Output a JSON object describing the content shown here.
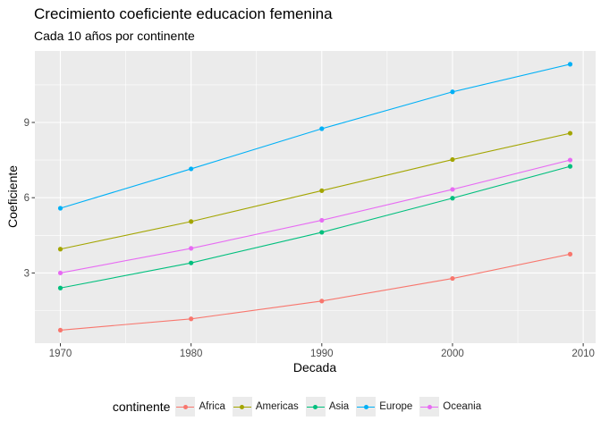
{
  "chart_data": {
    "type": "line",
    "title": "Crecimiento coeficiente educacion femenina",
    "subtitle": "Cada 10 años por continente",
    "xlabel": "Decada",
    "ylabel": "Coeficiente",
    "x": [
      1970,
      1980,
      1990,
      2000,
      2009
    ],
    "xlim": [
      1968.05,
      2010.95
    ],
    "ylim": [
      0.2,
      11.85
    ],
    "xticks": [
      1970,
      1980,
      1990,
      2000,
      2010
    ],
    "yticks": [
      3,
      6,
      9
    ],
    "grid": true,
    "legend_position": "bottom",
    "legend_title": "continente",
    "series": [
      {
        "name": "Africa",
        "color": "#F8766D",
        "values": [
          0.72,
          1.17,
          1.88,
          2.78,
          3.75
        ]
      },
      {
        "name": "Americas",
        "color": "#A3A500",
        "values": [
          3.95,
          5.05,
          6.28,
          7.52,
          8.57
        ]
      },
      {
        "name": "Asia",
        "color": "#00BF7D",
        "values": [
          2.4,
          3.4,
          4.62,
          5.98,
          7.25
        ]
      },
      {
        "name": "Europe",
        "color": "#00B0F6",
        "values": [
          5.58,
          7.15,
          8.75,
          10.22,
          11.32
        ]
      },
      {
        "name": "Oceania",
        "color": "#E76BF3",
        "values": [
          3.0,
          3.98,
          5.1,
          6.33,
          7.5
        ]
      }
    ]
  }
}
